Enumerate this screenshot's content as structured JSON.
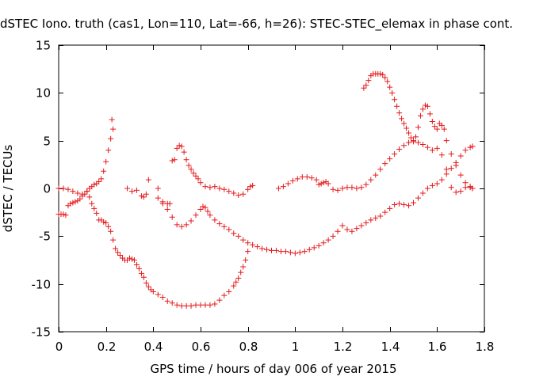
{
  "chart_data": {
    "type": "scatter",
    "title": "dSTEC Iono. truth (cas1, Lon=110, Lat=-66, h=26): STEC-STEC_elemax in phase cont.",
    "xlabel": "GPS time / hours of day 006 of year 2015",
    "ylabel": "dSTEC  / TECUs",
    "xlim": [
      0,
      1.8
    ],
    "ylim": [
      -15,
      15
    ],
    "xticks": [
      0,
      0.2,
      0.4,
      0.6,
      0.8,
      1,
      1.2,
      1.4,
      1.6,
      1.8
    ],
    "xtick_labels": [
      "0",
      "0.2",
      "0.4",
      "0.6",
      "0.8",
      "1",
      "1.2",
      "1.4",
      "1.6",
      "1.8"
    ],
    "yticks": [
      -15,
      -10,
      -5,
      0,
      5,
      10,
      15
    ],
    "ytick_labels": [
      "-15",
      "-10",
      "-5",
      "0",
      "5",
      "10",
      "15"
    ],
    "grid": false,
    "marker": "+",
    "color": "#e41a1c",
    "series": [
      {
        "x": [
          0.0,
          0.01,
          0.02,
          0.03,
          0.04,
          0.05,
          0.06,
          0.07,
          0.08,
          0.09,
          0.1,
          0.11,
          0.12,
          0.13,
          0.14,
          0.15,
          0.16,
          0.17,
          0.18,
          0.19,
          0.2,
          0.21,
          0.22,
          0.23
        ],
        "y": [
          -2.7,
          -2.7,
          -2.7,
          -2.8,
          -1.8,
          -1.6,
          -1.5,
          -1.4,
          -1.3,
          -1.1,
          -0.8,
          -0.6,
          -0.3,
          0.0,
          0.2,
          0.4,
          0.5,
          0.7,
          1.0,
          1.8,
          2.8,
          4.0,
          5.2,
          6.2
        ]
      },
      {
        "x": [
          0.225,
          0.0,
          0.02,
          0.04,
          0.06,
          0.08,
          0.1,
          0.12,
          0.13,
          0.14,
          0.15,
          0.16,
          0.17,
          0.18,
          0.19,
          0.2,
          0.21,
          0.22,
          0.23,
          0.24,
          0.25,
          0.26,
          0.27,
          0.28,
          0.29,
          0.3,
          0.31,
          0.32,
          0.33,
          0.34,
          0.35,
          0.36,
          0.37,
          0.38,
          0.39,
          0.4,
          0.42,
          0.44,
          0.46,
          0.48,
          0.5,
          0.52,
          0.54,
          0.56,
          0.58,
          0.6,
          0.62,
          0.64,
          0.66,
          0.68,
          0.7,
          0.72,
          0.74,
          0.75,
          0.76,
          0.77,
          0.78,
          0.79,
          0.8
        ],
        "y": [
          7.2,
          0.0,
          0.0,
          -0.1,
          -0.3,
          -0.5,
          -0.6,
          -0.3,
          -0.9,
          -1.6,
          -2.1,
          -2.6,
          -3.3,
          -3.3,
          -3.5,
          -3.6,
          -4.0,
          -4.5,
          -5.4,
          -6.3,
          -6.7,
          -7.0,
          -7.3,
          -7.5,
          -7.5,
          -7.3,
          -7.4,
          -7.5,
          -8.0,
          -8.4,
          -8.9,
          -9.3,
          -9.9,
          -10.3,
          -10.6,
          -10.8,
          -11.1,
          -11.4,
          -11.8,
          -12.0,
          -12.2,
          -12.3,
          -12.3,
          -12.3,
          -12.2,
          -12.2,
          -12.2,
          -12.2,
          -12.1,
          -11.7,
          -11.2,
          -10.8,
          -10.2,
          -9.8,
          -9.4,
          -8.8,
          -8.2,
          -7.5,
          -6.6
        ]
      },
      {
        "x": [
          0.29,
          0.31,
          0.33,
          0.35,
          0.36,
          0.37,
          0.38,
          0.42,
          0.44,
          0.46,
          0.47,
          0.48,
          0.49,
          0.5,
          0.51,
          0.52,
          0.53,
          0.54,
          0.55,
          0.56,
          0.57,
          0.58,
          0.59,
          0.6,
          0.62,
          0.64,
          0.66,
          0.68,
          0.7,
          0.72,
          0.74,
          0.76,
          0.78,
          0.8,
          0.81,
          0.82
        ],
        "y": [
          0.0,
          -0.3,
          -0.2,
          -0.8,
          -0.9,
          -0.6,
          0.9,
          0.0,
          -1.4,
          -1.6,
          -1.6,
          2.9,
          3.0,
          4.2,
          4.5,
          4.4,
          3.8,
          3.0,
          2.4,
          2.0,
          1.6,
          1.3,
          1.0,
          0.6,
          0.2,
          0.1,
          0.2,
          0.0,
          -0.1,
          -0.3,
          -0.5,
          -0.7,
          -0.6,
          -0.1,
          0.2,
          0.3
        ]
      },
      {
        "x": [
          0.42,
          0.44,
          0.46,
          0.48,
          0.5,
          0.52,
          0.54,
          0.56,
          0.58,
          0.6,
          0.61,
          0.62,
          0.63,
          0.64,
          0.66,
          0.68,
          0.7,
          0.72,
          0.74,
          0.76,
          0.78,
          0.8,
          0.82,
          0.84,
          0.86,
          0.88,
          0.9,
          0.92,
          0.94,
          0.96,
          0.98,
          1.0,
          1.02,
          1.04,
          1.06,
          1.08,
          1.1,
          1.12,
          1.14,
          1.16,
          1.18,
          1.2,
          1.22,
          1.24,
          1.26,
          1.28,
          1.3,
          1.32,
          1.34,
          1.36,
          1.38,
          1.4,
          1.42,
          1.44,
          1.46,
          1.48,
          1.5,
          1.52,
          1.54,
          1.56,
          1.58,
          1.6,
          1.62,
          1.64,
          1.66,
          1.68,
          1.7,
          1.72,
          1.74,
          1.75
        ],
        "y": [
          -1.0,
          -1.6,
          -2.2,
          -3.0,
          -3.8,
          -4.0,
          -3.8,
          -3.4,
          -2.8,
          -2.2,
          -1.9,
          -2.0,
          -2.4,
          -2.8,
          -3.3,
          -3.7,
          -4.0,
          -4.3,
          -4.7,
          -5.0,
          -5.4,
          -5.7,
          -5.9,
          -6.1,
          -6.3,
          -6.4,
          -6.5,
          -6.5,
          -6.6,
          -6.6,
          -6.7,
          -6.8,
          -6.7,
          -6.6,
          -6.4,
          -6.2,
          -6.0,
          -5.7,
          -5.4,
          -5.0,
          -4.5,
          -3.9,
          -4.3,
          -4.5,
          -4.2,
          -3.9,
          -3.6,
          -3.3,
          -3.1,
          -2.9,
          -2.5,
          -2.1,
          -1.7,
          -1.6,
          -1.7,
          -1.8,
          -1.5,
          -1.0,
          -0.5,
          0.0,
          0.3,
          0.5,
          0.9,
          1.5,
          2.1,
          2.7,
          3.4,
          4.0,
          4.3,
          4.4
        ]
      },
      {
        "x": [
          0.93,
          0.95,
          0.97,
          0.99,
          1.01,
          1.03,
          1.05,
          1.07,
          1.09,
          1.1,
          1.11,
          1.12,
          1.13,
          1.14,
          1.16,
          1.18,
          1.2,
          1.22,
          1.24,
          1.26,
          1.28,
          1.3,
          1.32,
          1.34,
          1.36,
          1.38,
          1.4,
          1.42,
          1.44,
          1.46,
          1.48,
          1.5,
          1.52,
          1.54,
          1.56,
          1.58,
          1.6,
          1.62,
          1.64,
          1.66,
          1.68,
          1.7,
          1.72,
          1.74,
          1.75
        ],
        "y": [
          0.0,
          0.2,
          0.5,
          0.8,
          1.0,
          1.2,
          1.2,
          1.1,
          0.9,
          0.4,
          0.5,
          0.6,
          0.7,
          0.5,
          -0.1,
          -0.2,
          0.0,
          0.1,
          0.1,
          0.0,
          0.1,
          0.4,
          0.9,
          1.4,
          2.0,
          2.6,
          3.1,
          3.6,
          4.1,
          4.5,
          4.8,
          5.0,
          4.8,
          4.6,
          4.3,
          4.0,
          4.2,
          3.5,
          2.0,
          0.1,
          -0.4,
          -0.3,
          0.1,
          0.2,
          0.0
        ]
      },
      {
        "x": [
          1.29,
          1.3,
          1.31,
          1.32,
          1.33,
          1.34,
          1.35,
          1.36,
          1.37,
          1.38,
          1.39,
          1.4,
          1.41,
          1.42,
          1.43,
          1.44,
          1.45,
          1.46,
          1.47,
          1.48,
          1.49,
          1.5,
          1.51,
          1.52,
          1.53,
          1.54,
          1.55,
          1.56,
          1.57,
          1.58,
          1.59,
          1.6,
          1.61,
          1.62,
          1.63,
          1.64,
          1.66,
          1.68,
          1.7,
          1.72,
          1.74,
          1.75
        ],
        "y": [
          10.5,
          10.8,
          11.3,
          11.8,
          12.0,
          12.0,
          12.0,
          12.0,
          11.9,
          11.6,
          11.2,
          10.6,
          10.0,
          9.3,
          8.6,
          7.9,
          7.3,
          6.8,
          6.3,
          5.8,
          5.3,
          4.9,
          5.4,
          6.4,
          7.6,
          8.3,
          8.7,
          8.6,
          7.8,
          7.0,
          6.5,
          6.2,
          6.8,
          6.6,
          6.2,
          5.0,
          3.6,
          2.4,
          1.4,
          0.6,
          0.1,
          0.0
        ]
      }
    ]
  }
}
